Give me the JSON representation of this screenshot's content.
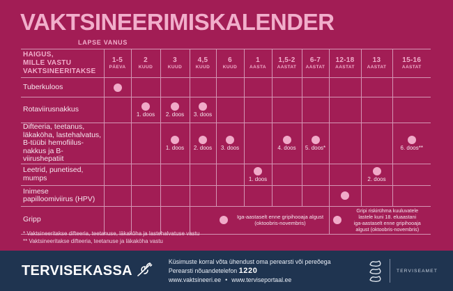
{
  "title": "VAKTSINEERIMISKALENDER",
  "colors": {
    "background": "#A21D55",
    "accent_pink": "#F1AECB",
    "grid_line": "#D596B5",
    "text_light": "#F6E7EF",
    "dot": "#F0AAC8",
    "footer_bg": "#1F3450"
  },
  "table": {
    "age_axis_label": "LAPSE VANUS",
    "disease_header": [
      "HAIGUS,",
      "MILLE VASTU",
      "VAKTSINEERITAKSE"
    ],
    "columns": [
      {
        "value": "1-5",
        "unit": "PÄEVA"
      },
      {
        "value": "2",
        "unit": "KUUD"
      },
      {
        "value": "3",
        "unit": "KUUD"
      },
      {
        "value": "4,5",
        "unit": "KUUD"
      },
      {
        "value": "6",
        "unit": "KUUD"
      },
      {
        "value": "1",
        "unit": "AASTA"
      },
      {
        "value": "1,5-2",
        "unit": "AASTAT"
      },
      {
        "value": "6-7",
        "unit": "AASTAT"
      },
      {
        "value": "12-18",
        "unit": "AASTAT"
      },
      {
        "value": "13",
        "unit": "AASTAT"
      },
      {
        "value": "15-16",
        "unit": "AASTAT"
      }
    ],
    "rows": [
      {
        "disease": [
          "Tuberkuloos"
        ],
        "cells": [
          {
            "col": 0,
            "dot": true
          }
        ]
      },
      {
        "disease": [
          "Rotaviirusnakkus"
        ],
        "cells": [
          {
            "col": 1,
            "dot": true,
            "label": "1. doos"
          },
          {
            "col": 2,
            "dot": true,
            "label": "2. doos"
          },
          {
            "col": 3,
            "dot": true,
            "label": "3. doos"
          }
        ]
      },
      {
        "disease": [
          "Difteeria, teetanus,",
          "läkaköha, lastehalvatus,",
          "B-tüübi hemofiilus-",
          "nakkus ja B-viirushepatiit"
        ],
        "cells": [
          {
            "col": 2,
            "dot": true,
            "label": "1. doos"
          },
          {
            "col": 3,
            "dot": true,
            "label": "2. doos"
          },
          {
            "col": 4,
            "dot": true,
            "label": "3. doos"
          },
          {
            "col": 6,
            "dot": true,
            "label": "4. doos"
          },
          {
            "col": 7,
            "dot": true,
            "label": "5. doos*"
          },
          {
            "col": 10,
            "dot": true,
            "label": "6. doos**"
          }
        ]
      },
      {
        "disease": [
          "Leetrid, punetised,",
          "mumps"
        ],
        "cells": [
          {
            "col": 5,
            "dot": true,
            "label": "1. doos"
          },
          {
            "col": 9,
            "dot": true,
            "label": "2. doos"
          }
        ]
      },
      {
        "disease": [
          "Inimese",
          "papilloomiviirus (HPV)"
        ],
        "cells": [
          {
            "col": 8,
            "dot": true
          }
        ]
      },
      {
        "disease": [
          "Gripp"
        ],
        "cells": [
          {
            "col": 3,
            "span": 5,
            "dot": true,
            "text": [
              "Iga-aastaselt enne gripihooaja algust",
              "(oktoobris-novembris)"
            ]
          },
          {
            "col": 8,
            "span": 3,
            "dot": true,
            "text": [
              "Gripi riskirühma kuuluvatele",
              "lastele kuni 18. eluaastani",
              "iga-aastaselt enne gripihooaja",
              "algust (oktoobris-novembris)"
            ]
          }
        ]
      }
    ]
  },
  "footnotes": [
    "* Vaktsineeritakse difteeria, teetanuse, läkaköha ja lastehalvatuse vastu",
    "** Vaktsineeritakse difteeria, teetanuse ja läkaköha vastu"
  ],
  "footer": {
    "brand": "TERVISEKASSA",
    "contact_line": "Küsimuste korral võta ühendust oma perearsti või pereõega",
    "phone_label": "Perearsti nõuandetelefon",
    "phone_number": "1220",
    "link1": "www.vaktsineeri.ee",
    "separator": "•",
    "link2": "www.terviseportaal.ee",
    "agency": "TERVISEAMET"
  }
}
